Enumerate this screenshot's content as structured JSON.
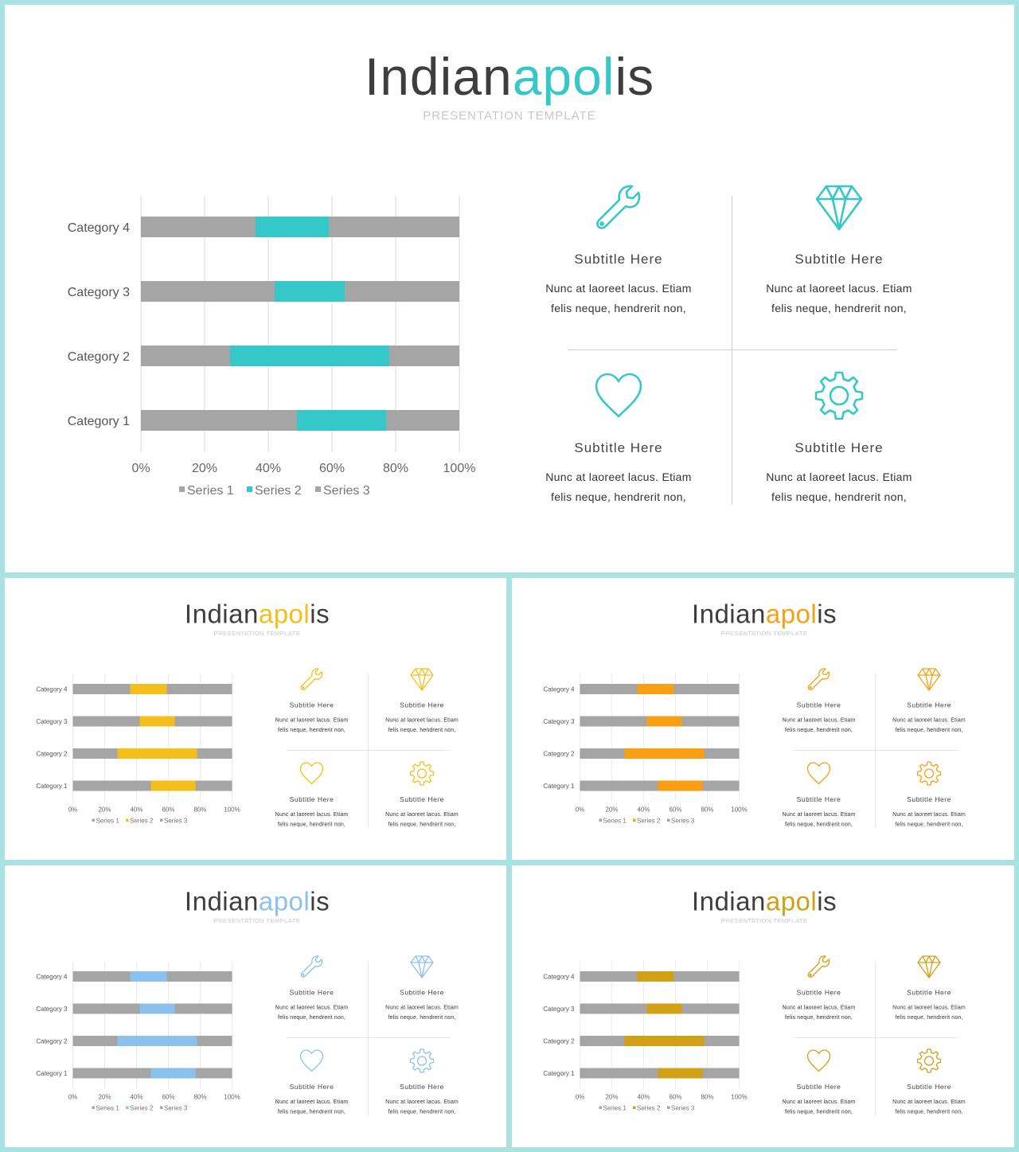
{
  "template": {
    "title_plain": "Indian",
    "title_accent": "apol",
    "title_tail": "is",
    "subtitle": "PRESENTATION  TEMPLATE"
  },
  "features": [
    {
      "icon": "wrench-icon",
      "title": "Subtitle  Here",
      "line1": "Nunc at laoreet lacus. Etiam",
      "line2": "felis neque, hendrerit non,"
    },
    {
      "icon": "diamond-icon",
      "title": "Subtitle  Here",
      "line1": "Nunc at laoreet lacus. Etiam",
      "line2": "felis neque, hendrerit non,"
    },
    {
      "icon": "heart-icon",
      "title": "Subtitle  Here",
      "line1": "Nunc at laoreet lacus. Etiam",
      "line2": "felis neque, hendrerit non,"
    },
    {
      "icon": "gear-icon",
      "title": "Subtitle  Here",
      "line1": "Nunc at laoreet lacus. Etiam",
      "line2": "felis neque, hendrerit non,"
    }
  ],
  "slides": [
    {
      "id": "big",
      "accent": "#36c8c8"
    },
    {
      "id": "s1",
      "accent": "#f5bf1b"
    },
    {
      "id": "s2",
      "accent": "#f89f13"
    },
    {
      "id": "s3",
      "accent": "#8cc1ee"
    },
    {
      "id": "s4",
      "accent": "#d0a017"
    }
  ],
  "colors": {
    "frame": "#a8e2e2",
    "series1": "#a5a5a5",
    "series3": "#a5a5a5",
    "grid": "#d9d9d9"
  },
  "chart_data": {
    "type": "bar",
    "stacked": "100% horizontal",
    "categories": [
      "Category 1",
      "Category 2",
      "Category 3",
      "Category 4"
    ],
    "series": [
      {
        "name": "Series 1",
        "values": [
          49,
          28,
          42,
          36
        ]
      },
      {
        "name": "Series 2",
        "values": [
          28,
          50,
          22,
          23
        ]
      },
      {
        "name": "Series 3",
        "values": [
          23,
          22,
          36,
          41
        ]
      }
    ],
    "xticks": [
      "0%",
      "20%",
      "40%",
      "60%",
      "80%",
      "100%"
    ],
    "xlim": [
      0,
      100
    ],
    "grid": true,
    "legend": "bottom"
  }
}
